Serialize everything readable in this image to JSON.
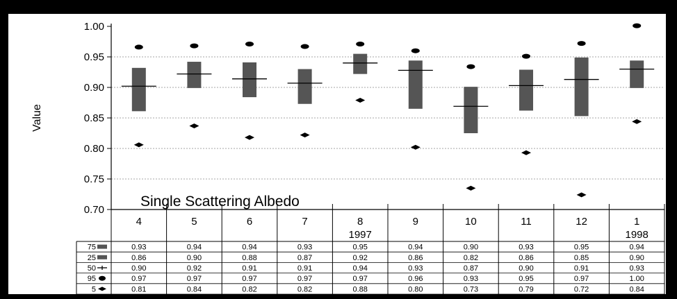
{
  "chart_data": {
    "type": "box",
    "title": "Single Scattering Albedo",
    "ylabel": "Value",
    "xlabel": "",
    "ylim": [
      0.7,
      1.0
    ],
    "yticks": [
      "1.00",
      "0.95",
      "0.90",
      "0.85",
      "0.80",
      "0.75",
      "0.70"
    ],
    "grid": true,
    "categories": [
      {
        "month": "4",
        "year": ""
      },
      {
        "month": "5",
        "year": ""
      },
      {
        "month": "6",
        "year": ""
      },
      {
        "month": "7",
        "year": ""
      },
      {
        "month": "8",
        "year": "1997"
      },
      {
        "month": "9",
        "year": ""
      },
      {
        "month": "10",
        "year": ""
      },
      {
        "month": "11",
        "year": ""
      },
      {
        "month": "12",
        "year": ""
      },
      {
        "month": "1",
        "year": "1998"
      }
    ],
    "series": [
      {
        "name": "75",
        "values": [
          0.932,
          0.942,
          0.941,
          0.93,
          0.955,
          0.944,
          0.901,
          0.929,
          0.949,
          0.944
        ]
      },
      {
        "name": "25",
        "values": [
          0.861,
          0.899,
          0.884,
          0.873,
          0.922,
          0.865,
          0.825,
          0.862,
          0.853,
          0.899
        ]
      },
      {
        "name": "50",
        "values": [
          0.902,
          0.922,
          0.914,
          0.907,
          0.94,
          0.928,
          0.869,
          0.903,
          0.913,
          0.93
        ]
      },
      {
        "name": "95",
        "values": [
          0.966,
          0.968,
          0.971,
          0.967,
          0.971,
          0.96,
          0.934,
          0.951,
          0.972,
          1.001
        ]
      },
      {
        "name": "5",
        "values": [
          0.806,
          0.837,
          0.818,
          0.822,
          0.879,
          0.802,
          0.735,
          0.793,
          0.724,
          0.844
        ]
      }
    ],
    "table": {
      "rows": [
        {
          "label": "75",
          "values": [
            "0.93",
            "0.94",
            "0.94",
            "0.93",
            "0.95",
            "0.94",
            "0.90",
            "0.93",
            "0.95",
            "0.94"
          ]
        },
        {
          "label": "25",
          "values": [
            "0.86",
            "0.90",
            "0.88",
            "0.87",
            "0.92",
            "0.86",
            "0.82",
            "0.86",
            "0.85",
            "0.90"
          ]
        },
        {
          "label": "50",
          "values": [
            "0.90",
            "0.92",
            "0.91",
            "0.91",
            "0.94",
            "0.93",
            "0.87",
            "0.90",
            "0.91",
            "0.93"
          ]
        },
        {
          "label": "95",
          "values": [
            "0.97",
            "0.97",
            "0.97",
            "0.97",
            "0.97",
            "0.96",
            "0.93",
            "0.95",
            "0.97",
            "1.00"
          ]
        },
        {
          "label": "5",
          "values": [
            "0.81",
            "0.84",
            "0.82",
            "0.82",
            "0.88",
            "0.80",
            "0.73",
            "0.79",
            "0.72",
            "0.84"
          ]
        }
      ]
    },
    "colors": {
      "box": "#555555",
      "marker": "#000000",
      "grid": "#888888"
    }
  }
}
